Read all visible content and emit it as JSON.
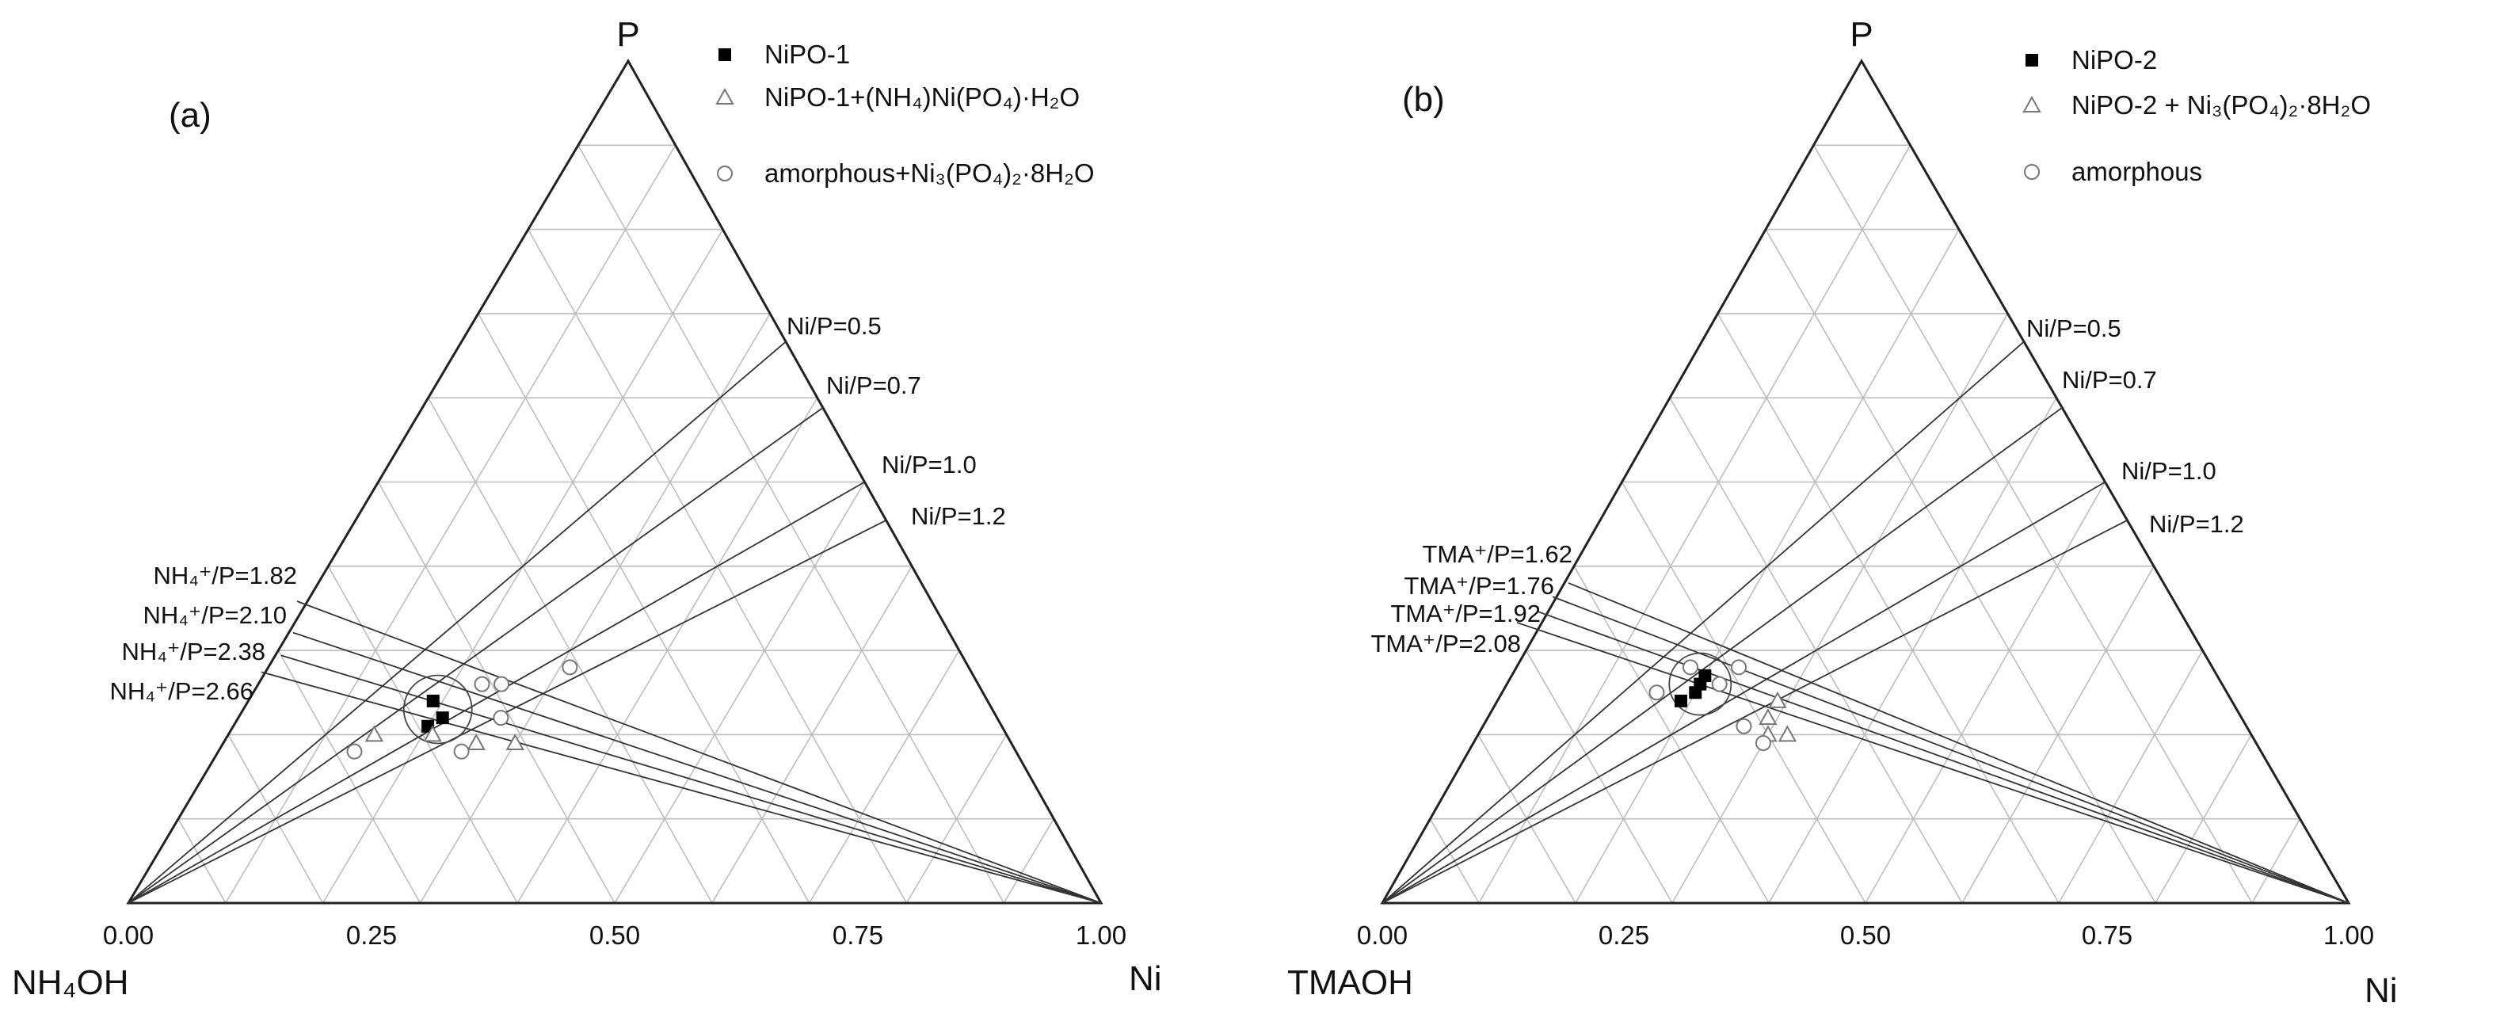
{
  "chart_data": [
    {
      "type": "scatter",
      "subtype": "ternary",
      "panel_label": "(a)",
      "vertices": {
        "top": "P",
        "left": "NH₄OH",
        "right": "Ni"
      },
      "axis_ticks": [
        "0.00",
        "0.25",
        "0.50",
        "0.75",
        "1.00"
      ],
      "grid": true,
      "legend_position": "top-right",
      "legend": [
        {
          "marker": "filled-square",
          "label": "NiPO-1"
        },
        {
          "marker": "open-triangle",
          "label": "NiPO-1+(NH₄)Ni(PO₄)·H₂O"
        },
        {
          "marker": "open-circle",
          "label": "amorphous+Ni₃(PO₄)₂·8H₂O"
        }
      ],
      "ni_p_lines": [
        {
          "label": "Ni/P=0.5",
          "ratio": 0.5
        },
        {
          "label": "Ni/P=0.7",
          "ratio": 0.7
        },
        {
          "label": "Ni/P=1.0",
          "ratio": 1.0
        },
        {
          "label": "Ni/P=1.2",
          "ratio": 1.2
        }
      ],
      "amine_p_lines": [
        {
          "label": "NH₄⁺/P=1.82",
          "ratio": 1.82
        },
        {
          "label": "NH₄⁺/P=2.10",
          "ratio": 2.1
        },
        {
          "label": "NH₄⁺/P=2.38",
          "ratio": 2.38
        },
        {
          "label": "NH₄⁺/P=2.66",
          "ratio": 2.66
        }
      ],
      "points": [
        {
          "Ni": 0.19,
          "P": 0.24,
          "marker": "filled-square"
        },
        {
          "Ni": 0.21,
          "P": 0.22,
          "marker": "filled-square"
        },
        {
          "Ni": 0.2,
          "P": 0.21,
          "marker": "filled-square"
        },
        {
          "Ni": 0.15,
          "P": 0.2,
          "marker": "open-triangle"
        },
        {
          "Ni": 0.3,
          "P": 0.19,
          "marker": "open-triangle"
        },
        {
          "Ni": 0.26,
          "P": 0.19,
          "marker": "open-triangle"
        },
        {
          "Ni": 0.21,
          "P": 0.2,
          "marker": "open-triangle"
        },
        {
          "Ni": 0.31,
          "P": 0.28,
          "marker": "open-circle"
        },
        {
          "Ni": 0.25,
          "P": 0.26,
          "marker": "open-circle"
        },
        {
          "Ni": 0.27,
          "P": 0.22,
          "marker": "open-circle"
        },
        {
          "Ni": 0.23,
          "P": 0.26,
          "marker": "open-circle"
        },
        {
          "Ni": 0.14,
          "P": 0.18,
          "marker": "open-circle"
        },
        {
          "Ni": 0.25,
          "P": 0.18,
          "marker": "open-circle"
        }
      ],
      "highlight_circle": {
        "Ni": 0.2,
        "P": 0.23,
        "radius": 0.035
      }
    },
    {
      "type": "scatter",
      "subtype": "ternary",
      "panel_label": "(b)",
      "vertices": {
        "top": "P",
        "left": "TMAOH",
        "right": "Ni"
      },
      "axis_ticks": [
        "0.00",
        "0.25",
        "0.50",
        "0.75",
        "1.00"
      ],
      "grid": true,
      "legend_position": "top-right",
      "legend": [
        {
          "marker": "filled-square",
          "label": "NiPO-2"
        },
        {
          "marker": "open-triangle",
          "label": "NiPO-2 + Ni₃(PO₄)₂·8H₂O"
        },
        {
          "marker": "open-circle",
          "label": "amorphous"
        }
      ],
      "ni_p_lines": [
        {
          "label": "Ni/P=0.5",
          "ratio": 0.5
        },
        {
          "label": "Ni/P=0.7",
          "ratio": 0.7
        },
        {
          "label": "Ni/P=1.0",
          "ratio": 1.0
        },
        {
          "label": "Ni/P=1.2",
          "ratio": 1.2
        }
      ],
      "amine_p_lines": [
        {
          "label": "TMA⁺/P=1.62",
          "ratio": 1.62
        },
        {
          "label": "TMA⁺/P=1.76",
          "ratio": 1.76
        },
        {
          "label": "TMA⁺/P=1.92",
          "ratio": 1.92
        },
        {
          "label": "TMA⁺/P=2.08",
          "ratio": 2.08
        }
      ],
      "points": [
        {
          "Ni": 0.2,
          "P": 0.27,
          "marker": "filled-square"
        },
        {
          "Ni": 0.2,
          "P": 0.26,
          "marker": "filled-square"
        },
        {
          "Ni": 0.2,
          "P": 0.25,
          "marker": "filled-square"
        },
        {
          "Ni": 0.19,
          "P": 0.24,
          "marker": "filled-square"
        },
        {
          "Ni": 0.29,
          "P": 0.22,
          "marker": "open-triangle"
        },
        {
          "Ni": 0.3,
          "P": 0.2,
          "marker": "open-triangle"
        },
        {
          "Ni": 0.32,
          "P": 0.2,
          "marker": "open-triangle"
        },
        {
          "Ni": 0.29,
          "P": 0.24,
          "marker": "open-triangle"
        },
        {
          "Ni": 0.23,
          "P": 0.28,
          "marker": "open-circle"
        },
        {
          "Ni": 0.18,
          "P": 0.28,
          "marker": "open-circle"
        },
        {
          "Ni": 0.22,
          "P": 0.26,
          "marker": "open-circle"
        },
        {
          "Ni": 0.16,
          "P": 0.25,
          "marker": "open-circle"
        },
        {
          "Ni": 0.27,
          "P": 0.21,
          "marker": "open-circle"
        },
        {
          "Ni": 0.3,
          "P": 0.19,
          "marker": "open-circle"
        }
      ],
      "highlight_circle": {
        "Ni": 0.2,
        "P": 0.26,
        "radius": 0.032
      }
    }
  ]
}
